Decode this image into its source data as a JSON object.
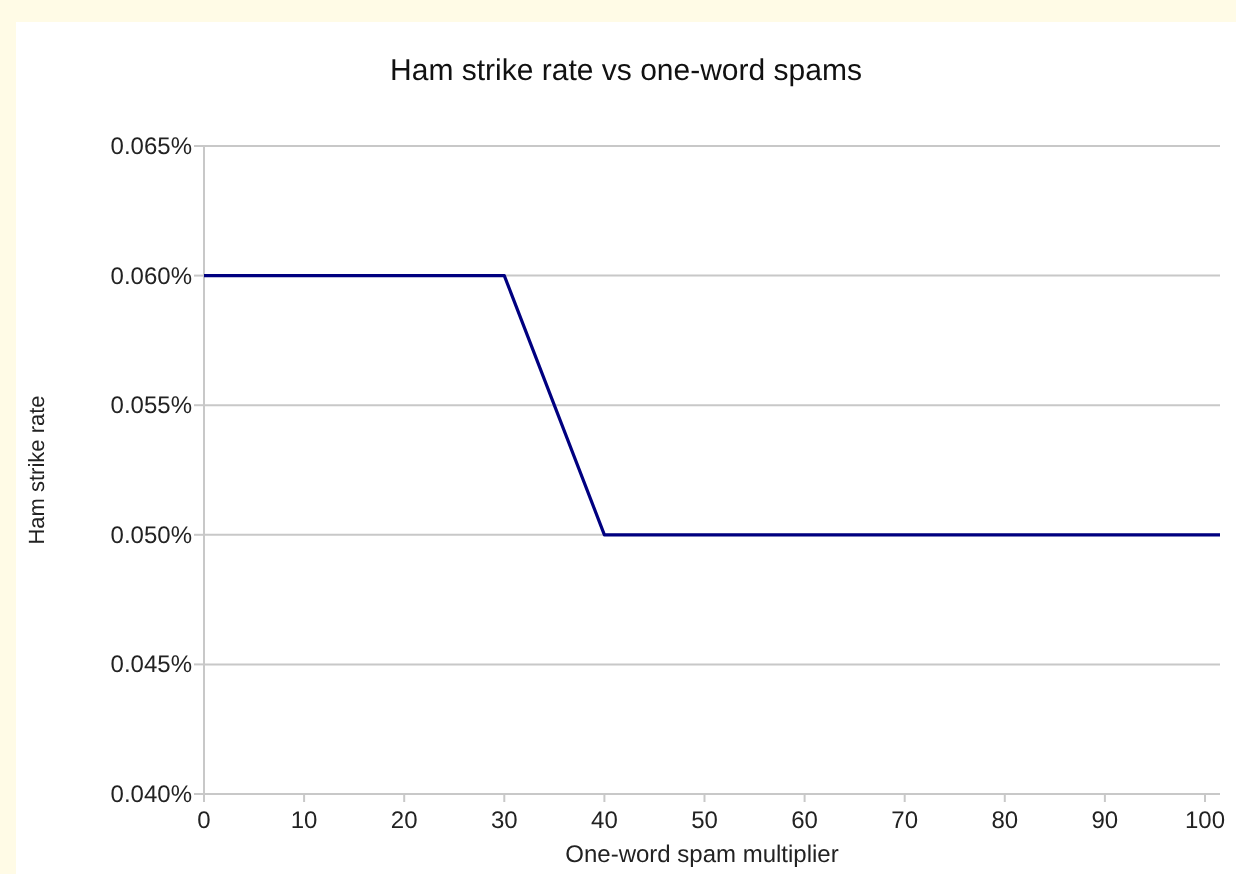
{
  "chart_data": {
    "type": "line",
    "title": "Ham strike rate vs one-word spams",
    "xlabel": "One-word spam multiplier",
    "ylabel": "Ham strike rate",
    "x": [
      0,
      30,
      40,
      101.5
    ],
    "series": [
      {
        "color": "#000080",
        "values": [
          0.06,
          0.06,
          0.05,
          0.05
        ]
      }
    ],
    "xlim": [
      0,
      101.5
    ],
    "xticks": [
      0,
      10,
      20,
      30,
      40,
      50,
      60,
      70,
      80,
      90,
      100
    ],
    "ylim": [
      0.04,
      0.065
    ],
    "yticks": [
      {
        "value": 0.04,
        "label": "0.040%"
      },
      {
        "value": 0.045,
        "label": "0.045%"
      },
      {
        "value": 0.05,
        "label": "0.050%"
      },
      {
        "value": 0.055,
        "label": "0.055%"
      },
      {
        "value": 0.06,
        "label": "0.060%"
      },
      {
        "value": 0.065,
        "label": "0.065%"
      }
    ],
    "grid": "y",
    "marker": "none",
    "line_style": "solid"
  }
}
